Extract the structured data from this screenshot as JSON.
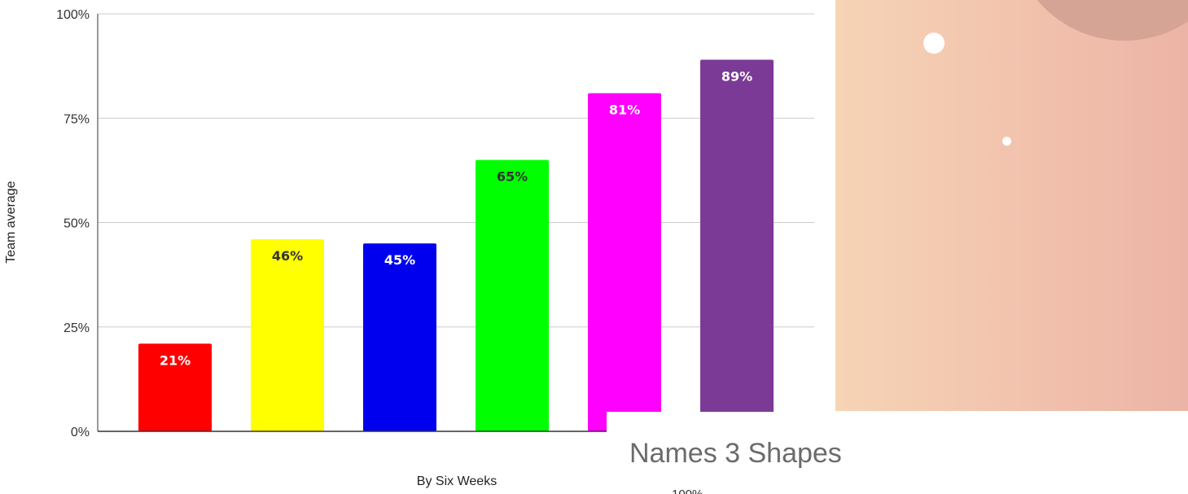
{
  "chart_data": {
    "type": "bar",
    "title": "",
    "xlabel": "By Six Weeks",
    "ylabel": "Team average",
    "categories": [
      "",
      "",
      "",
      "",
      "",
      ""
    ],
    "values": [
      21,
      46,
      45,
      65,
      81,
      89
    ],
    "value_labels": [
      "21%",
      "46%",
      "45%",
      "65%",
      "81%",
      "89%"
    ],
    "bar_colors": [
      "#ff0000",
      "#ffff00",
      "#0000ee",
      "#00ff00",
      "#ff00ff",
      "#7b3a96"
    ],
    "label_colors": [
      "#ffffff",
      "#333333",
      "#ffffff",
      "#333333",
      "#ffffff",
      "#ffffff"
    ],
    "ylim": [
      0,
      100
    ],
    "yticks": [
      0,
      25,
      50,
      75,
      100
    ],
    "ytick_labels": [
      "0%",
      "25%",
      "50%",
      "75%",
      "100%"
    ],
    "grid": true,
    "legend": "none"
  },
  "overlay": {
    "title": "Names 3 Shapes",
    "partial_tick": "100%"
  },
  "decoration": {
    "gradient_start": "#f6d4b6",
    "gradient_end": "#ecb4a6",
    "blob_color": "#d6a494"
  }
}
